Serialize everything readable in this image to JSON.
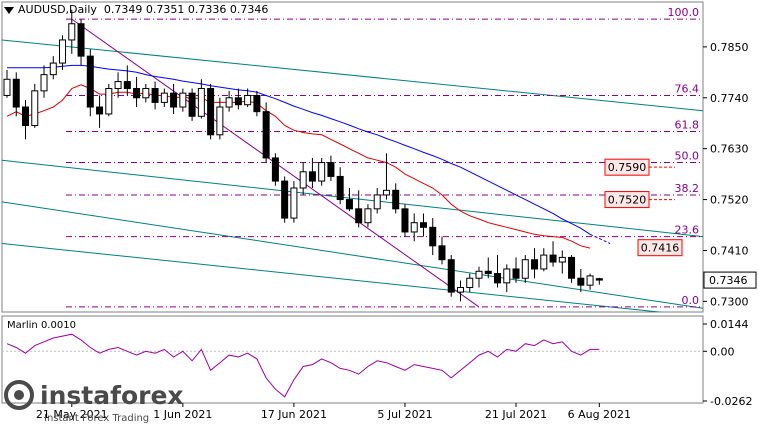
{
  "header": {
    "symbol": "AUDUSD,Daily",
    "ohlc": "0.7349 0.7351 0.7336 0.7346"
  },
  "indicator": {
    "label": "Marlin 0.0010",
    "ticks": [
      "0.0144",
      "0.00",
      "-0.0262"
    ]
  },
  "price_axis": {
    "ticks": [
      "0.7850",
      "0.7740",
      "0.7630",
      "0.7520",
      "0.7410",
      "0.7300"
    ],
    "current_price": "0.7346"
  },
  "date_axis": [
    "21 May 2021",
    "1 Jun 2021",
    "17 Jun 2021",
    "5 Jul 2021",
    "21 Jul 2021",
    "6 Aug 2021"
  ],
  "fibonacci": [
    {
      "label": "100.0",
      "price": 0.791
    },
    {
      "label": "76.4",
      "price": 0.7745
    },
    {
      "label": "61.8",
      "price": 0.7667
    },
    {
      "label": "50.0",
      "price": 0.76
    },
    {
      "label": "38.2",
      "price": 0.753
    },
    {
      "label": "23.6",
      "price": 0.744
    },
    {
      "label": "0.0",
      "price": 0.7288
    }
  ],
  "target_boxes": [
    "0.7590",
    "0.7520",
    "0.7416"
  ],
  "watermark": {
    "brand": "instaforex",
    "tagline": "Instant Forex Trading"
  },
  "colors": {
    "bull": "#ffffff",
    "bear": "#000000",
    "ma_red": "#e00000",
    "ma_blue": "#0000ff",
    "fib": "#8b008b",
    "channel": "#008080",
    "marlin": "#a000a0",
    "target": "#ff0000"
  },
  "chart_data": {
    "type": "candlestick",
    "ylim": [
      0.7277,
      0.7947
    ],
    "candles": [
      [
        0.7745,
        0.78,
        0.774,
        0.778
      ],
      [
        0.778,
        0.7795,
        0.77,
        0.772
      ],
      [
        0.772,
        0.7735,
        0.765,
        0.768
      ],
      [
        0.768,
        0.777,
        0.7675,
        0.7755
      ],
      [
        0.7755,
        0.781,
        0.774,
        0.779
      ],
      [
        0.779,
        0.783,
        0.778,
        0.7815
      ],
      [
        0.7815,
        0.7875,
        0.78,
        0.7865
      ],
      [
        0.7865,
        0.793,
        0.7835,
        0.79
      ],
      [
        0.79,
        0.791,
        0.781,
        0.783
      ],
      [
        0.783,
        0.7845,
        0.77,
        0.772
      ],
      [
        0.772,
        0.7745,
        0.7675,
        0.7705
      ],
      [
        0.7705,
        0.777,
        0.77,
        0.776
      ],
      [
        0.776,
        0.7795,
        0.774,
        0.7775
      ],
      [
        0.7775,
        0.781,
        0.7745,
        0.776
      ],
      [
        0.776,
        0.7785,
        0.772,
        0.774
      ],
      [
        0.774,
        0.777,
        0.773,
        0.776
      ],
      [
        0.776,
        0.7775,
        0.7715,
        0.773
      ],
      [
        0.773,
        0.776,
        0.772,
        0.775
      ],
      [
        0.775,
        0.777,
        0.7705,
        0.772
      ],
      [
        0.772,
        0.776,
        0.771,
        0.775
      ],
      [
        0.775,
        0.776,
        0.769,
        0.77
      ],
      [
        0.77,
        0.778,
        0.7695,
        0.776
      ],
      [
        0.776,
        0.777,
        0.765,
        0.766
      ],
      [
        0.766,
        0.774,
        0.765,
        0.772
      ],
      [
        0.772,
        0.7755,
        0.771,
        0.774
      ],
      [
        0.774,
        0.776,
        0.7715,
        0.7725
      ],
      [
        0.7725,
        0.776,
        0.772,
        0.7745
      ],
      [
        0.7745,
        0.7755,
        0.77,
        0.771
      ],
      [
        0.771,
        0.773,
        0.76,
        0.761
      ],
      [
        0.761,
        0.762,
        0.755,
        0.756
      ],
      [
        0.756,
        0.757,
        0.747,
        0.748
      ],
      [
        0.748,
        0.756,
        0.747,
        0.7545
      ],
      [
        0.7545,
        0.76,
        0.753,
        0.758
      ],
      [
        0.758,
        0.761,
        0.7545,
        0.756
      ],
      [
        0.756,
        0.761,
        0.755,
        0.76
      ],
      [
        0.76,
        0.7615,
        0.756,
        0.757
      ],
      [
        0.757,
        0.759,
        0.751,
        0.752
      ],
      [
        0.752,
        0.7545,
        0.7495,
        0.75
      ],
      [
        0.75,
        0.754,
        0.746,
        0.747
      ],
      [
        0.747,
        0.751,
        0.746,
        0.75
      ],
      [
        0.75,
        0.7545,
        0.749,
        0.753
      ],
      [
        0.753,
        0.762,
        0.752,
        0.754
      ],
      [
        0.754,
        0.7555,
        0.749,
        0.75
      ],
      [
        0.75,
        0.751,
        0.744,
        0.745
      ],
      [
        0.745,
        0.749,
        0.743,
        0.747
      ],
      [
        0.747,
        0.749,
        0.744,
        0.746
      ],
      [
        0.746,
        0.748,
        0.74,
        0.742
      ],
      [
        0.742,
        0.744,
        0.738,
        0.739
      ],
      [
        0.739,
        0.74,
        0.731,
        0.732
      ],
      [
        0.732,
        0.7345,
        0.73,
        0.733
      ],
      [
        0.733,
        0.736,
        0.732,
        0.735
      ],
      [
        0.735,
        0.7375,
        0.733,
        0.7365
      ],
      [
        0.7365,
        0.7395,
        0.735,
        0.736
      ],
      [
        0.736,
        0.74,
        0.733,
        0.734
      ],
      [
        0.734,
        0.738,
        0.732,
        0.737
      ],
      [
        0.737,
        0.7395,
        0.734,
        0.735
      ],
      [
        0.735,
        0.74,
        0.734,
        0.739
      ],
      [
        0.739,
        0.7415,
        0.735,
        0.737
      ],
      [
        0.737,
        0.7415,
        0.7365,
        0.74
      ],
      [
        0.74,
        0.743,
        0.7375,
        0.7385
      ],
      [
        0.7385,
        0.741,
        0.736,
        0.7395
      ],
      [
        0.7395,
        0.74,
        0.734,
        0.735
      ],
      [
        0.735,
        0.737,
        0.732,
        0.7335
      ],
      [
        0.7335,
        0.736,
        0.7325,
        0.7355
      ],
      [
        0.7349,
        0.7351,
        0.7336,
        0.7346
      ]
    ],
    "ma_red": [
      0.77,
      0.771,
      0.77,
      0.7705,
      0.7712,
      0.772,
      0.7735,
      0.776,
      0.7768,
      0.776,
      0.7748,
      0.7748,
      0.7752,
      0.7752,
      0.7748,
      0.775,
      0.7745,
      0.7745,
      0.774,
      0.7742,
      0.7738,
      0.774,
      0.773,
      0.773,
      0.773,
      0.773,
      0.7733,
      0.7728,
      0.7712,
      0.77,
      0.768,
      0.767,
      0.7665,
      0.7662,
      0.766,
      0.765,
      0.764,
      0.763,
      0.762,
      0.761,
      0.7605,
      0.76,
      0.759,
      0.7575,
      0.7565,
      0.7555,
      0.7545,
      0.753,
      0.751,
      0.7495,
      0.7485,
      0.7478,
      0.747,
      0.7465,
      0.746,
      0.7455,
      0.745,
      0.7445,
      0.7442,
      0.744,
      0.7438,
      0.743,
      0.742,
      0.7415
    ],
    "ma_blue": [
      0.7805,
      0.7805,
      0.7805,
      0.7805,
      0.7805,
      0.7806,
      0.7808,
      0.781,
      0.781,
      0.7808,
      0.7805,
      0.7802,
      0.78,
      0.7798,
      0.7795,
      0.779,
      0.7786,
      0.7783,
      0.778,
      0.7776,
      0.7773,
      0.777,
      0.7766,
      0.7763,
      0.776,
      0.7757,
      0.7755,
      0.7752,
      0.7745,
      0.7738,
      0.773,
      0.7722,
      0.7715,
      0.7708,
      0.7702,
      0.7695,
      0.7688,
      0.7681,
      0.7673,
      0.7666,
      0.766,
      0.7652,
      0.7645,
      0.7637,
      0.763,
      0.7622,
      0.7615,
      0.7607,
      0.7598,
      0.759,
      0.758,
      0.757,
      0.756,
      0.755,
      0.754,
      0.753,
      0.752,
      0.751,
      0.75,
      0.749,
      0.7478,
      0.7468,
      0.7458,
      0.7445
    ],
    "marlin": [
      0.004,
      0.002,
      -0.001,
      0.003,
      0.005,
      0.007,
      0.008,
      0.009,
      0.006,
      0.002,
      -0.001,
      0.001,
      0.002,
      0.0,
      -0.002,
      0.0,
      -0.001,
      0.001,
      -0.003,
      0.0,
      -0.005,
      0.001,
      -0.01,
      -0.006,
      -0.002,
      -0.003,
      -0.001,
      -0.004,
      -0.014,
      -0.02,
      -0.024,
      -0.015,
      -0.008,
      -0.007,
      -0.004,
      -0.006,
      -0.009,
      -0.01,
      -0.012,
      -0.008,
      -0.005,
      -0.006,
      -0.008,
      -0.01,
      -0.007,
      -0.008,
      -0.009,
      -0.01,
      -0.014,
      -0.01,
      -0.006,
      -0.002,
      0.0,
      -0.003,
      0.001,
      0.0,
      0.004,
      0.003,
      0.006,
      0.004,
      0.005,
      0.0,
      -0.002,
      0.001,
      0.001
    ],
    "marlin_ylim": [
      -0.0262,
      0.0144
    ]
  }
}
